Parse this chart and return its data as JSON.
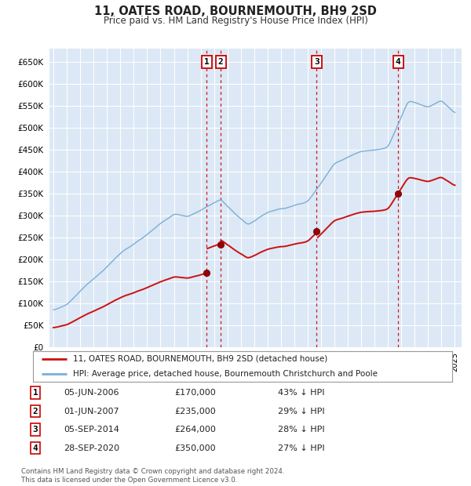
{
  "title": "11, OATES ROAD, BOURNEMOUTH, BH9 2SD",
  "subtitle": "Price paid vs. HM Land Registry's House Price Index (HPI)",
  "background_color": "#ffffff",
  "plot_bg_color": "#dce8f5",
  "grid_color": "#ffffff",
  "hpi_line_color": "#7aaed6",
  "price_line_color": "#cc1111",
  "ylim": [
    0,
    680000
  ],
  "yticks": [
    0,
    50000,
    100000,
    150000,
    200000,
    250000,
    300000,
    350000,
    400000,
    450000,
    500000,
    550000,
    600000,
    650000
  ],
  "transactions": [
    {
      "num": 1,
      "date": "05-JUN-2006",
      "price": 170000,
      "pct": "43% ↓ HPI",
      "x_year": 2006.44
    },
    {
      "num": 2,
      "date": "01-JUN-2007",
      "price": 235000,
      "pct": "29% ↓ HPI",
      "x_year": 2007.5
    },
    {
      "num": 3,
      "date": "05-SEP-2014",
      "price": 264000,
      "pct": "28% ↓ HPI",
      "x_year": 2014.67
    },
    {
      "num": 4,
      "date": "28-SEP-2020",
      "price": 350000,
      "pct": "27% ↓ HPI",
      "x_year": 2020.75
    }
  ],
  "legend_line1": "11, OATES ROAD, BOURNEMOUTH, BH9 2SD (detached house)",
  "legend_line2": "HPI: Average price, detached house, Bournemouth Christchurch and Poole",
  "footnote": "Contains HM Land Registry data © Crown copyright and database right 2024.\nThis data is licensed under the Open Government Licence v3.0.",
  "xmin": 1994.7,
  "xmax": 2025.5,
  "table_rows": [
    [
      "1",
      "05-JUN-2006",
      "£170,000",
      "43% ↓ HPI"
    ],
    [
      "2",
      "01-JUN-2007",
      "£235,000",
      "29% ↓ HPI"
    ],
    [
      "3",
      "05-SEP-2014",
      "£264,000",
      "28% ↓ HPI"
    ],
    [
      "4",
      "28-SEP-2020",
      "£350,000",
      "27% ↓ HPI"
    ]
  ]
}
